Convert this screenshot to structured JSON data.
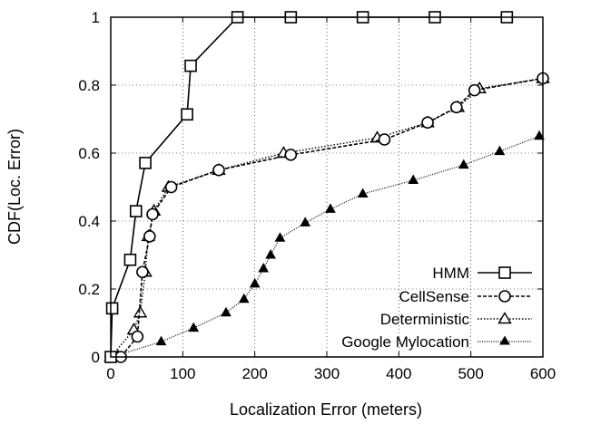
{
  "chart_data": {
    "type": "line",
    "title": "",
    "xlabel": "Localization Error (meters)",
    "ylabel": "CDF(Loc. Error)",
    "xlim": [
      0,
      600
    ],
    "ylim": [
      0,
      1
    ],
    "x_ticks": [
      "0",
      "100",
      "200",
      "300",
      "400",
      "500",
      "600"
    ],
    "y_ticks": [
      "0",
      "0.2",
      "0.4",
      "0.6",
      "0.8",
      "1"
    ],
    "grid": true,
    "legend_placement": "bottom-right",
    "series": [
      {
        "name": "HMM",
        "line_style": "solid",
        "marker": "square",
        "color": "#000000",
        "points": [
          [
            0,
            0
          ],
          [
            2,
            0.143
          ],
          [
            27,
            0.286
          ],
          [
            35,
            0.429
          ],
          [
            48,
            0.571
          ],
          [
            106,
            0.714
          ],
          [
            111,
            0.857
          ],
          [
            176,
            1.0
          ],
          [
            250,
            1.0
          ],
          [
            350,
            1.0
          ],
          [
            450,
            1.0
          ],
          [
            550,
            1.0
          ]
        ]
      },
      {
        "name": "CellSense",
        "line_style": "dashed",
        "marker": "circle",
        "color": "#000000",
        "points": [
          [
            0,
            0
          ],
          [
            14,
            0
          ],
          [
            37,
            0.06
          ],
          [
            44,
            0.25
          ],
          [
            54,
            0.355
          ],
          [
            58,
            0.42
          ],
          [
            84,
            0.5
          ],
          [
            150,
            0.55
          ],
          [
            250,
            0.595
          ],
          [
            380,
            0.64
          ],
          [
            440,
            0.69
          ],
          [
            480,
            0.735
          ],
          [
            505,
            0.785
          ],
          [
            600,
            0.82
          ]
        ]
      },
      {
        "name": "Deterministic",
        "line_style": "dotted",
        "marker": "triangle",
        "color": "#000000",
        "points": [
          [
            0,
            0
          ],
          [
            32,
            0.08
          ],
          [
            41,
            0.13
          ],
          [
            48,
            0.25
          ],
          [
            52,
            0.355
          ],
          [
            60,
            0.43
          ],
          [
            80,
            0.5
          ],
          [
            150,
            0.55
          ],
          [
            240,
            0.6
          ],
          [
            370,
            0.645
          ],
          [
            440,
            0.69
          ],
          [
            482,
            0.735
          ],
          [
            512,
            0.79
          ],
          [
            600,
            0.82
          ]
        ]
      },
      {
        "name": "Google Mylocation",
        "line_style": "dotted-fine",
        "marker": "filled-triangle",
        "color": "#000000",
        "points": [
          [
            0,
            0
          ],
          [
            10,
            0.005
          ],
          [
            70,
            0.045
          ],
          [
            115,
            0.085
          ],
          [
            160,
            0.13
          ],
          [
            185,
            0.17
          ],
          [
            200,
            0.215
          ],
          [
            212,
            0.26
          ],
          [
            222,
            0.3
          ],
          [
            235,
            0.35
          ],
          [
            270,
            0.395
          ],
          [
            305,
            0.435
          ],
          [
            350,
            0.48
          ],
          [
            420,
            0.52
          ],
          [
            490,
            0.565
          ],
          [
            540,
            0.605
          ],
          [
            595,
            0.65
          ]
        ]
      }
    ]
  }
}
